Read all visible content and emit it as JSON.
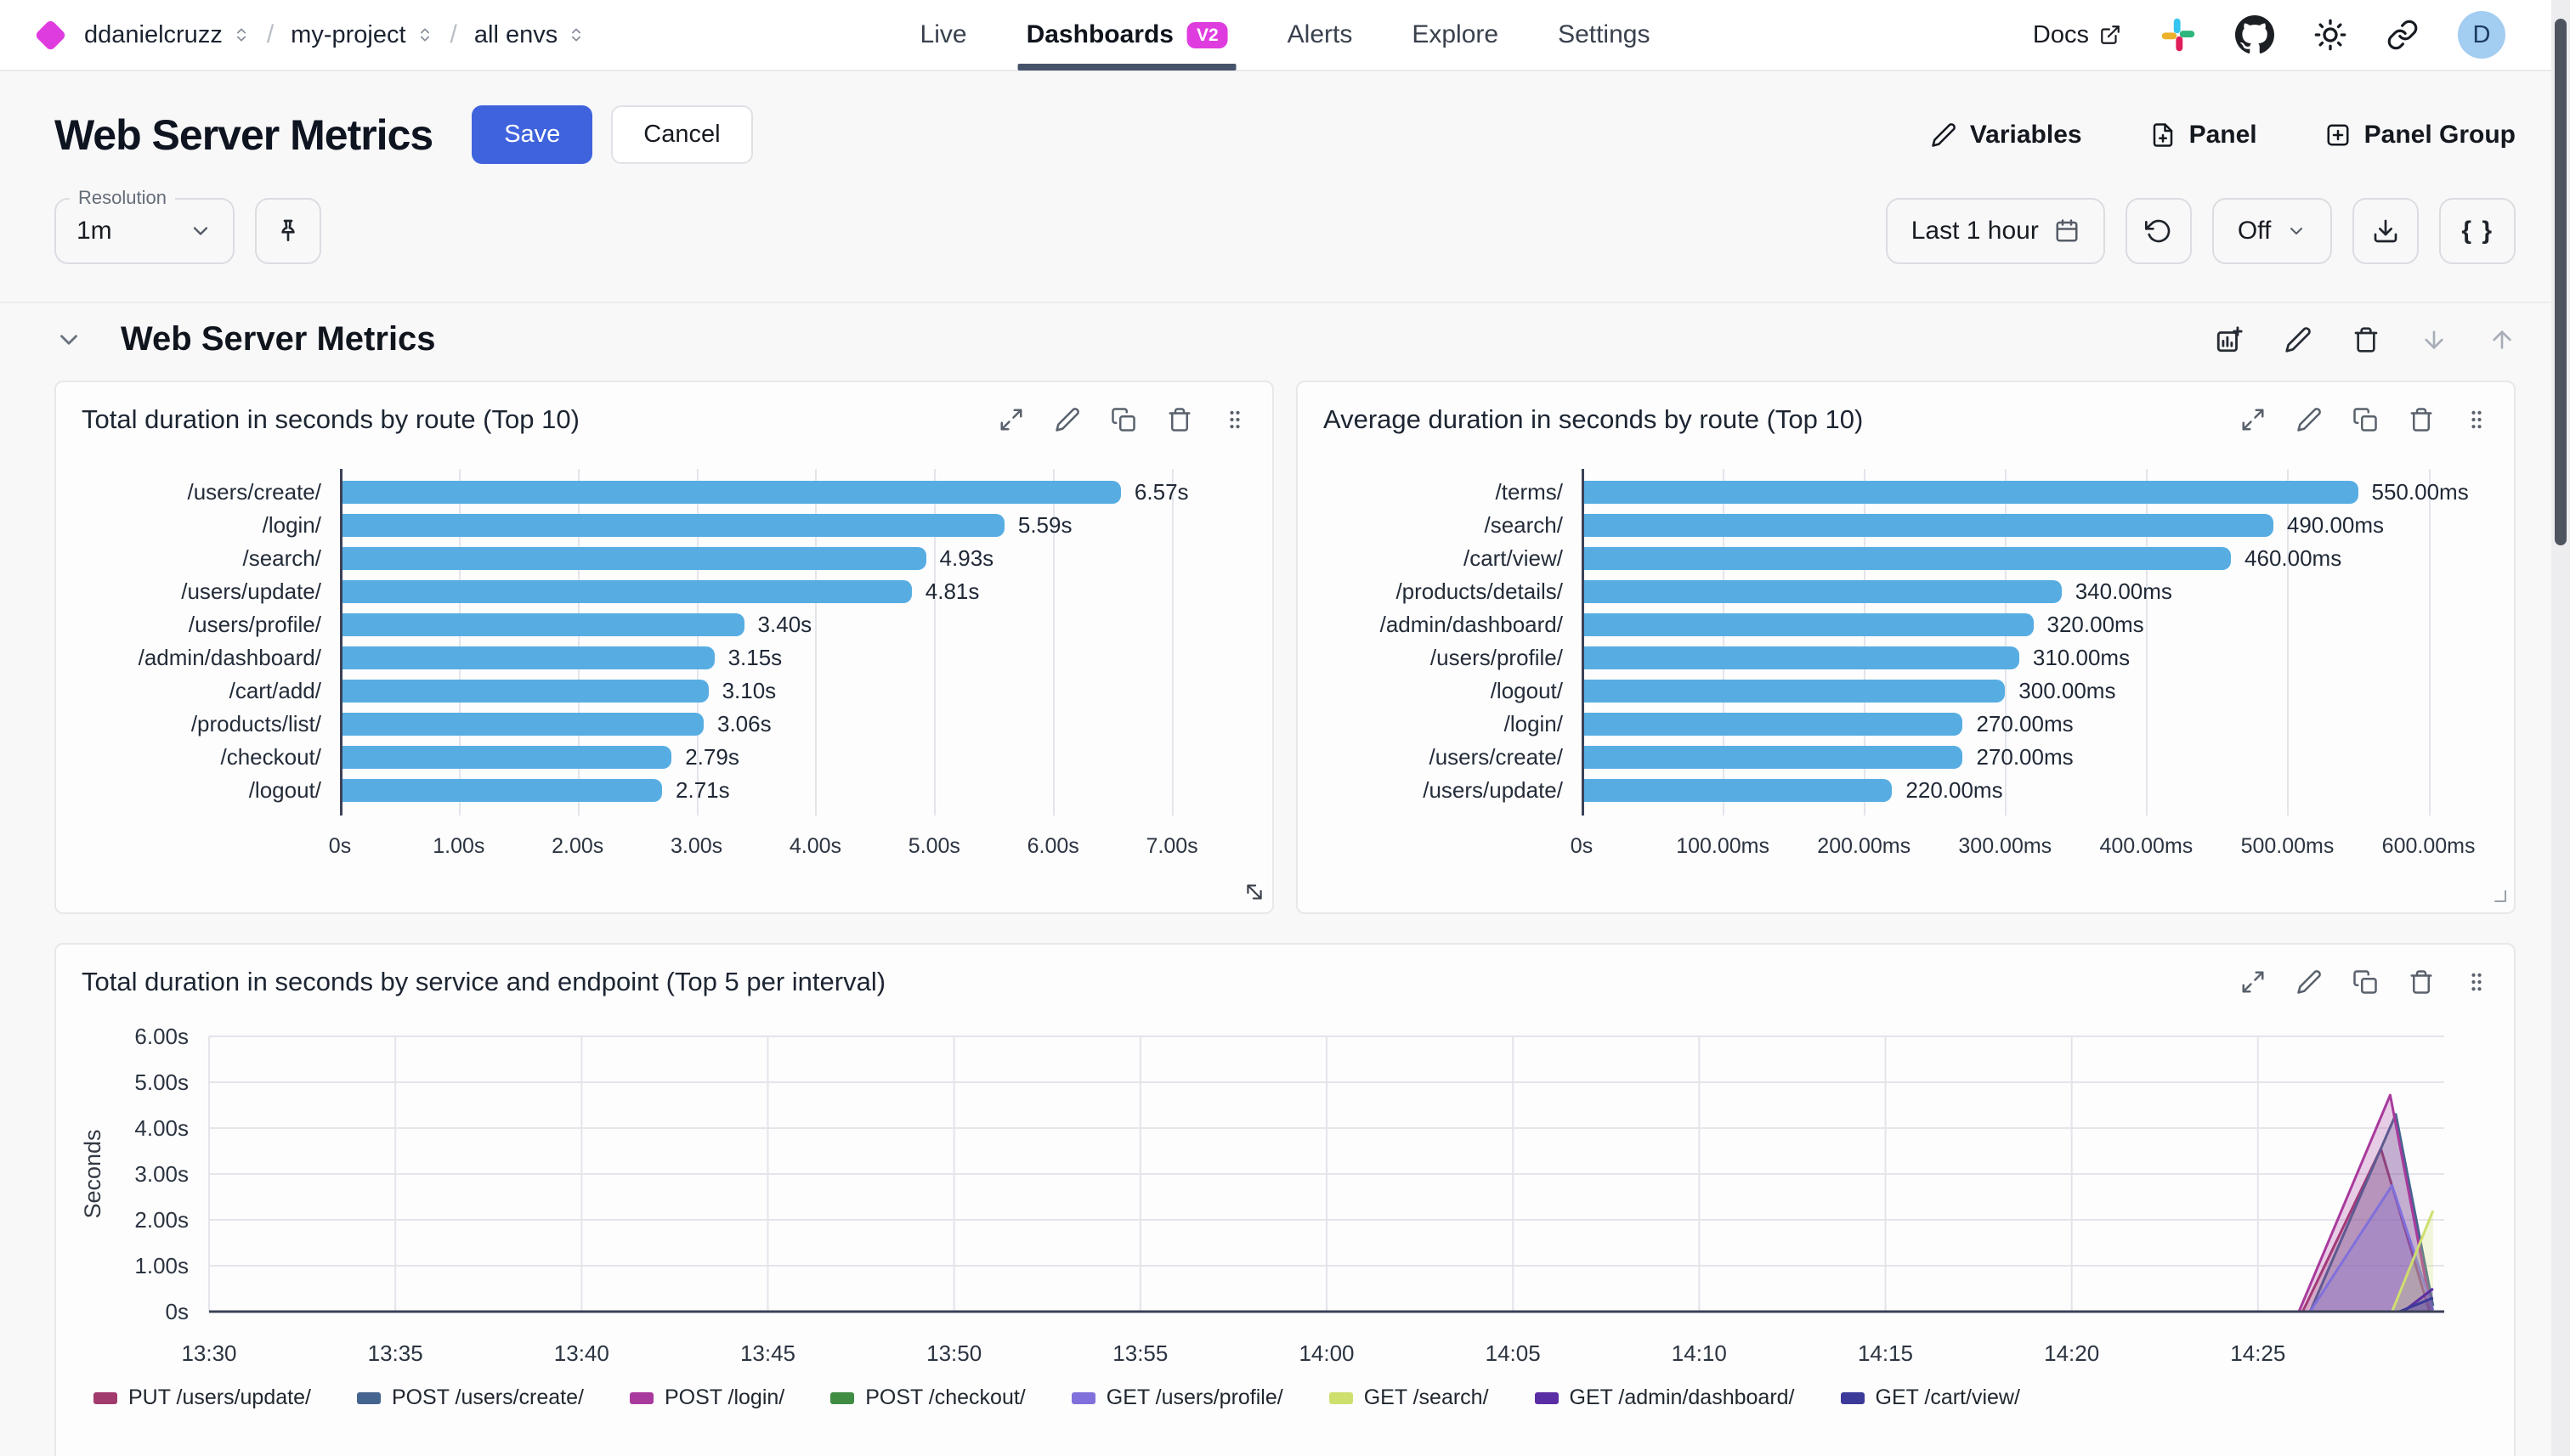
{
  "nav": {
    "breadcrumbs": [
      {
        "label": "ddanielcruzz"
      },
      {
        "label": "my-project"
      },
      {
        "label": "all envs"
      }
    ],
    "tabs": [
      {
        "id": "live",
        "label": "Live",
        "active": false
      },
      {
        "id": "dashboards",
        "label": "Dashboards",
        "badge": "V2",
        "active": true
      },
      {
        "id": "alerts",
        "label": "Alerts",
        "active": false
      },
      {
        "id": "explore",
        "label": "Explore",
        "active": false
      },
      {
        "id": "settings",
        "label": "Settings",
        "active": false
      }
    ],
    "docs_label": "Docs",
    "avatar_initial": "D"
  },
  "header": {
    "title": "Web Server Metrics",
    "save_label": "Save",
    "cancel_label": "Cancel",
    "variables_label": "Variables",
    "panel_label": "Panel",
    "panel_group_label": "Panel Group"
  },
  "toolbar": {
    "resolution_label": "Resolution",
    "resolution_value": "1m",
    "time_range_label": "Last 1 hour",
    "refresh_interval_label": "Off",
    "braces_label": "{ }"
  },
  "section": {
    "title": "Web Server Metrics"
  },
  "colors": {
    "accent_blue": "#3f63dd",
    "brand_magenta": "#df3cdf",
    "bar_blue": "#57ade2"
  },
  "chart_data": [
    {
      "type": "bar",
      "orientation": "horizontal",
      "title": "Total duration in seconds by route (Top 10)",
      "categories": [
        "/users/create/",
        "/login/",
        "/search/",
        "/users/update/",
        "/users/profile/",
        "/admin/dashboard/",
        "/cart/add/",
        "/products/list/",
        "/checkout/",
        "/logout/"
      ],
      "values": [
        6.57,
        5.59,
        4.93,
        4.81,
        3.4,
        3.15,
        3.1,
        3.06,
        2.79,
        2.71
      ],
      "value_labels": [
        "6.57s",
        "5.59s",
        "4.93s",
        "4.81s",
        "3.40s",
        "3.15s",
        "3.10s",
        "3.06s",
        "2.79s",
        "2.71s"
      ],
      "xticks": [
        {
          "v": 0,
          "label": "0s"
        },
        {
          "v": 1,
          "label": "1.00s"
        },
        {
          "v": 2,
          "label": "2.00s"
        },
        {
          "v": 3,
          "label": "3.00s"
        },
        {
          "v": 4,
          "label": "4.00s"
        },
        {
          "v": 5,
          "label": "5.00s"
        },
        {
          "v": 6,
          "label": "6.00s"
        },
        {
          "v": 7,
          "label": "7.00s"
        }
      ],
      "xlim": [
        0,
        7.6
      ],
      "bar_color": "#57ade2",
      "grid": true
    },
    {
      "type": "bar",
      "orientation": "horizontal",
      "title": "Average duration in seconds by route (Top 10)",
      "categories": [
        "/terms/",
        "/search/",
        "/cart/view/",
        "/products/details/",
        "/admin/dashboard/",
        "/users/profile/",
        "/logout/",
        "/login/",
        "/users/create/",
        "/users/update/"
      ],
      "values": [
        550,
        490,
        460,
        340,
        320,
        310,
        300,
        270,
        270,
        220
      ],
      "value_labels": [
        "550.00ms",
        "490.00ms",
        "460.00ms",
        "340.00ms",
        "320.00ms",
        "310.00ms",
        "300.00ms",
        "270.00ms",
        "270.00ms",
        "220.00ms"
      ],
      "xticks": [
        {
          "v": 0,
          "label": "0s"
        },
        {
          "v": 100,
          "label": "100.00ms"
        },
        {
          "v": 200,
          "label": "200.00ms"
        },
        {
          "v": 300,
          "label": "300.00ms"
        },
        {
          "v": 400,
          "label": "400.00ms"
        },
        {
          "v": 500,
          "label": "500.00ms"
        },
        {
          "v": 600,
          "label": "600.00ms"
        }
      ],
      "xlim": [
        0,
        640
      ],
      "bar_color": "#57ade2",
      "grid": true
    },
    {
      "type": "area",
      "title": "Total duration in seconds by service and endpoint (Top 5 per interval)",
      "ylabel": "Seconds",
      "yticks": [
        {
          "v": 0,
          "label": "0s"
        },
        {
          "v": 1,
          "label": "1.00s"
        },
        {
          "v": 2,
          "label": "2.00s"
        },
        {
          "v": 3,
          "label": "3.00s"
        },
        {
          "v": 4,
          "label": "4.00s"
        },
        {
          "v": 5,
          "label": "5.00s"
        },
        {
          "v": 6,
          "label": "6.00s"
        }
      ],
      "ylim": [
        0,
        6
      ],
      "xticks": [
        {
          "v": 0,
          "label": "13:30"
        },
        {
          "v": 5,
          "label": "13:35"
        },
        {
          "v": 10,
          "label": "13:40"
        },
        {
          "v": 15,
          "label": "13:45"
        },
        {
          "v": 20,
          "label": "13:50"
        },
        {
          "v": 25,
          "label": "13:55"
        },
        {
          "v": 30,
          "label": "14:00"
        },
        {
          "v": 35,
          "label": "14:05"
        },
        {
          "v": 40,
          "label": "14:10"
        },
        {
          "v": 45,
          "label": "14:15"
        },
        {
          "v": 50,
          "label": "14:20"
        },
        {
          "v": 55,
          "label": "14:25"
        }
      ],
      "xlim": [
        0,
        60
      ],
      "grid": true,
      "legend_position": "bottom",
      "series": [
        {
          "name": "PUT /users/update/",
          "color": "#a13a6d",
          "points": [
            [
              0,
              0
            ],
            [
              56.2,
              0
            ],
            [
              58.3,
              3.55
            ],
            [
              59.6,
              0.02
            ]
          ]
        },
        {
          "name": "POST /users/create/",
          "color": "#45648f",
          "points": [
            [
              0,
              0
            ],
            [
              56.4,
              0
            ],
            [
              58.7,
              4.3
            ],
            [
              59.7,
              0.12
            ]
          ]
        },
        {
          "name": "POST /login/",
          "color": "#a93a9d",
          "points": [
            [
              0,
              0
            ],
            [
              56.1,
              0
            ],
            [
              58.55,
              4.72
            ],
            [
              59.65,
              0.05
            ]
          ]
        },
        {
          "name": "POST /checkout/",
          "color": "#3f8c42",
          "points": [
            [
              0,
              0
            ],
            [
              59.7,
              0
            ]
          ]
        },
        {
          "name": "GET /users/profile/",
          "color": "#8070dc",
          "points": [
            [
              0,
              0
            ],
            [
              56.4,
              0
            ],
            [
              58.6,
              2.75
            ],
            [
              59.7,
              0.03
            ]
          ]
        },
        {
          "name": "GET /search/",
          "color": "#cfdf6e",
          "points": [
            [
              0,
              0
            ],
            [
              58.6,
              0
            ],
            [
              59.7,
              2.2
            ]
          ]
        },
        {
          "name": "GET /admin/dashboard/",
          "color": "#5b2da5",
          "points": [
            [
              0,
              0
            ],
            [
              58.9,
              0
            ],
            [
              59.7,
              0.5
            ]
          ]
        },
        {
          "name": "GET /cart/view/",
          "color": "#3c3a99",
          "points": [
            [
              0,
              0
            ],
            [
              58.8,
              0
            ],
            [
              59.7,
              0.3
            ]
          ]
        }
      ]
    }
  ]
}
